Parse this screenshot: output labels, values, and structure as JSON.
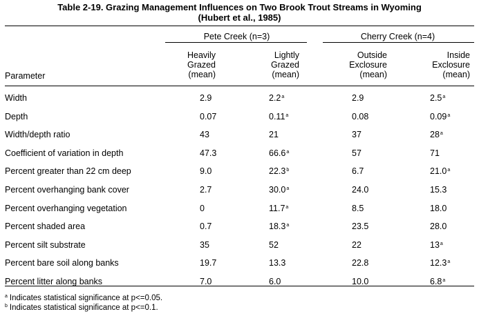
{
  "title_line1": "Table 2-19.  Grazing Management Influences on Two Brook Trout Streams in Wyoming",
  "title_line2": "(Hubert et al., 1985)",
  "groups": [
    {
      "label": "Pete Creek (n=3)"
    },
    {
      "label": "Cherry Creek (n=4)"
    }
  ],
  "columns": [
    {
      "line1": "Heavily",
      "line2": "Grazed",
      "line3": "(mean)"
    },
    {
      "line1": "Lightly",
      "line2": "Grazed",
      "line3": "(mean)"
    },
    {
      "line1": "Outside",
      "line2": "Exclosure",
      "line3": "(mean)"
    },
    {
      "line1": "Inside",
      "line2": "Exclosure",
      "line3": "(mean)"
    }
  ],
  "parameter_header": "Parameter",
  "rows": [
    {
      "label": "Width",
      "cells": [
        {
          "v": "2.9",
          "s": ""
        },
        {
          "v": "2.2",
          "s": "a"
        },
        {
          "v": "2.9",
          "s": ""
        },
        {
          "v": "2.5",
          "s": "a"
        }
      ]
    },
    {
      "label": "Depth",
      "cells": [
        {
          "v": "0.07",
          "s": ""
        },
        {
          "v": "0.11",
          "s": "a"
        },
        {
          "v": "0.08",
          "s": ""
        },
        {
          "v": "0.09",
          "s": "a"
        }
      ]
    },
    {
      "label": "Width/depth ratio",
      "cells": [
        {
          "v": "43",
          "s": ""
        },
        {
          "v": "21",
          "s": ""
        },
        {
          "v": "37",
          "s": ""
        },
        {
          "v": "28",
          "s": "a"
        }
      ]
    },
    {
      "label": "Coefficient of variation in depth",
      "cells": [
        {
          "v": "47.3",
          "s": ""
        },
        {
          "v": "66.6",
          "s": "a"
        },
        {
          "v": "57",
          "s": ""
        },
        {
          "v": "71",
          "s": ""
        }
      ]
    },
    {
      "label": "Percent greater than 22 cm deep",
      "cells": [
        {
          "v": "9.0",
          "s": ""
        },
        {
          "v": "22.3",
          "s": "b"
        },
        {
          "v": "6.7",
          "s": ""
        },
        {
          "v": "21.0",
          "s": "a"
        }
      ]
    },
    {
      "label": "Percent overhanging bank cover",
      "cells": [
        {
          "v": "2.7",
          "s": ""
        },
        {
          "v": "30.0",
          "s": "a"
        },
        {
          "v": "24.0",
          "s": ""
        },
        {
          "v": "15.3",
          "s": ""
        }
      ]
    },
    {
      "label": "Percent overhanging vegetation",
      "cells": [
        {
          "v": "0",
          "s": ""
        },
        {
          "v": "11.7",
          "s": "a"
        },
        {
          "v": "8.5",
          "s": ""
        },
        {
          "v": "18.0",
          "s": ""
        }
      ]
    },
    {
      "label": "Percent shaded area",
      "cells": [
        {
          "v": "0.7",
          "s": ""
        },
        {
          "v": "18.3",
          "s": "a"
        },
        {
          "v": "23.5",
          "s": ""
        },
        {
          "v": "28.0",
          "s": ""
        }
      ]
    },
    {
      "label": "Percent silt substrate",
      "cells": [
        {
          "v": "35",
          "s": ""
        },
        {
          "v": "52",
          "s": ""
        },
        {
          "v": "22",
          "s": ""
        },
        {
          "v": "13",
          "s": "a"
        }
      ]
    },
    {
      "label": "Percent bare soil along banks",
      "cells": [
        {
          "v": "19.7",
          "s": ""
        },
        {
          "v": "13.3",
          "s": ""
        },
        {
          "v": "22.8",
          "s": ""
        },
        {
          "v": "12.3",
          "s": "a"
        }
      ]
    },
    {
      "label": "Percent litter along banks",
      "cells": [
        {
          "v": "7.0",
          "s": ""
        },
        {
          "v": "6.0",
          "s": ""
        },
        {
          "v": "10.0",
          "s": ""
        },
        {
          "v": "6.8",
          "s": "a"
        }
      ]
    }
  ],
  "footnotes": [
    {
      "mark": "a",
      "text": "Indicates statistical significance at p<=0.05."
    },
    {
      "mark": "b",
      "text": "Indicates statistical significance at p<=0.1."
    }
  ]
}
